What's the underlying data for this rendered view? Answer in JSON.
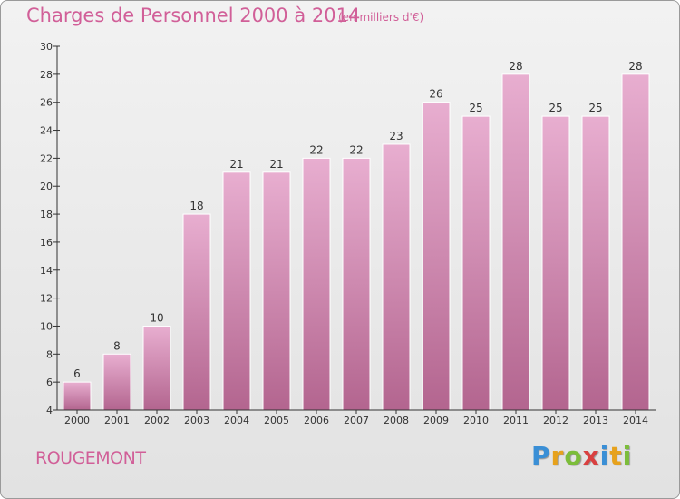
{
  "title": "Charges de Personnel 2000 à 2014",
  "subtitle": "(en milliers d'€)",
  "commune": "ROUGEMONT",
  "logo": {
    "letters": [
      "P",
      "r",
      "o",
      "x",
      "i",
      "t",
      "i"
    ],
    "colors": [
      "#3a8fd6",
      "#e7a21c",
      "#7cbd3a",
      "#d94040",
      "#3a8fd6",
      "#e7a21c",
      "#7cbd3a"
    ]
  },
  "colors": {
    "bar_light": "#e8aed0",
    "bar_dark": "#b3658f",
    "text": "#d15f98",
    "axis": "#333333"
  },
  "chart_data": {
    "type": "bar",
    "categories": [
      "2000",
      "2001",
      "2002",
      "2003",
      "2004",
      "2005",
      "2006",
      "2007",
      "2008",
      "2009",
      "2010",
      "2011",
      "2012",
      "2013",
      "2014"
    ],
    "values": [
      6,
      8,
      10,
      18,
      21,
      21,
      22,
      22,
      23,
      26,
      25,
      28,
      25,
      25,
      28
    ],
    "title": "Charges de Personnel 2000 à 2014",
    "xlabel": "",
    "ylabel": "",
    "ylim": [
      4,
      30
    ],
    "yticks": [
      4,
      6,
      8,
      10,
      12,
      14,
      16,
      18,
      20,
      22,
      24,
      26,
      28,
      30
    ],
    "grid": false,
    "legend": "none"
  }
}
